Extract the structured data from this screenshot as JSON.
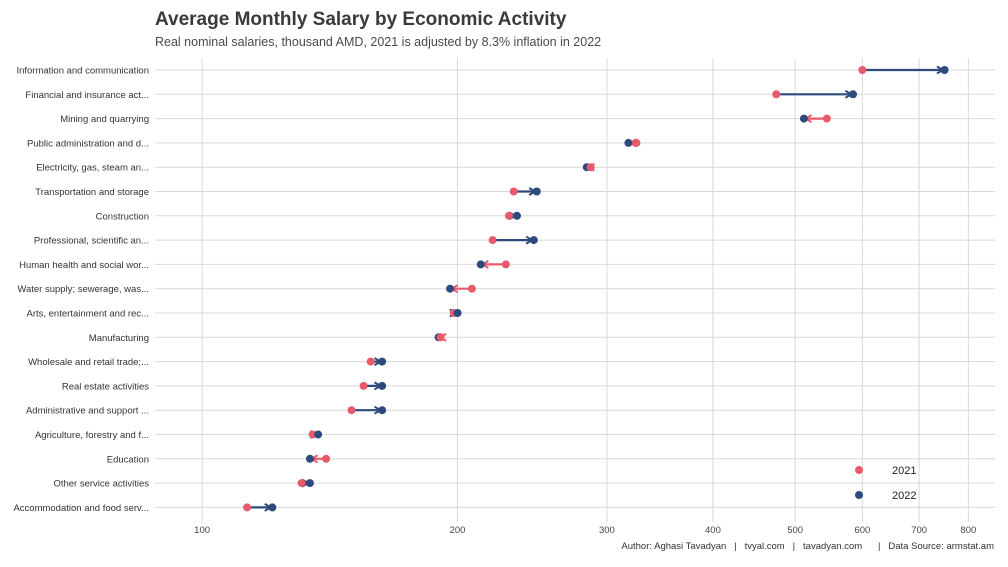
{
  "title": "Average Monthly Salary by Economic Activity",
  "subtitle": "Real nominal salaries, thousand AMD, 2021 is adjusted by 8.3% inflation in 2022",
  "caption": "Author: Aghasi Tavadyan   |   tvyal.com   |   tavadyan.com      |   Data Source: armstat.am",
  "colors": {
    "y2021": "#e8596c",
    "y2022": "#2e4a7d",
    "grid": "#d9d9d9"
  },
  "chart_data": {
    "type": "dumbbell",
    "x_scale": "log",
    "xlim": [
      88,
      860
    ],
    "x_ticks": [
      100,
      200,
      300,
      400,
      500,
      600,
      700,
      800
    ],
    "legend": {
      "position": "bottom-right",
      "entries": [
        "2021",
        "2022"
      ]
    },
    "categories": [
      "Information and communication",
      "Financial and insurance act...",
      "Mining and quarrying",
      "Public administration and d...",
      "Electricity,  gas, steam an...",
      "Transportation and storage",
      "Construction",
      "Professional, scientific an...",
      "Human health and social wor...",
      "Water supply; sewerage, was...",
      "Arts, entertainment and rec...",
      "Manufacturing",
      "Wholesale and retail trade;...",
      "Real estate activities",
      "Administrative and support ...",
      "Agriculture, forestry and f...",
      "Education",
      "Other service activities",
      "Accommodation and food serv..."
    ],
    "series": [
      {
        "name": "2021",
        "values": [
          600,
          475,
          545,
          325,
          287,
          233,
          230,
          220,
          228,
          208,
          198,
          191,
          158,
          155,
          150,
          135,
          140,
          131,
          113
        ]
      },
      {
        "name": "2022",
        "values": [
          750,
          585,
          512,
          318,
          284,
          248,
          235,
          246,
          213,
          196,
          200,
          190,
          163,
          163,
          163,
          137,
          134,
          134,
          121
        ]
      }
    ]
  }
}
